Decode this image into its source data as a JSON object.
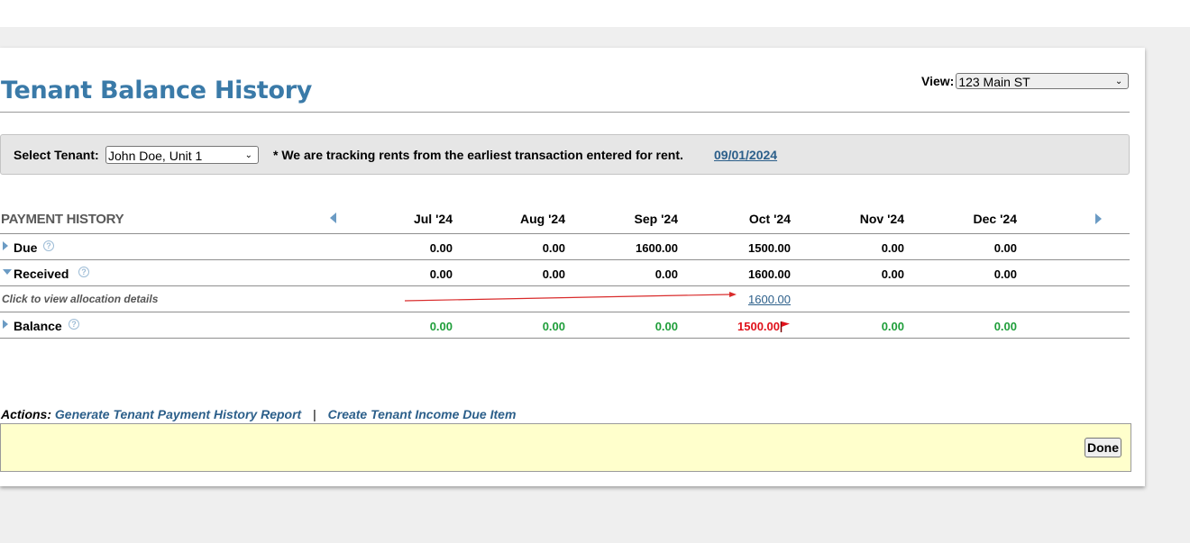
{
  "page": {
    "title": "Tenant Balance History",
    "view_label": "View:",
    "view_value": "123 Main ST"
  },
  "tenant": {
    "label": "Select Tenant:",
    "value": "John Doe, Unit 1",
    "note": "* We are tracking rents from the earliest transaction entered for rent.",
    "tracking_date": "09/01/2024"
  },
  "history": {
    "heading": "PAYMENT HISTORY",
    "months": [
      "Jul '24",
      "Aug '24",
      "Sep '24",
      "Oct '24",
      "Nov '24",
      "Dec '24"
    ],
    "due": {
      "label": "Due",
      "values": [
        "0.00",
        "0.00",
        "1600.00",
        "1500.00",
        "0.00",
        "0.00"
      ]
    },
    "received": {
      "label": "Received",
      "values": [
        "0.00",
        "0.00",
        "0.00",
        "1600.00",
        "0.00",
        "0.00"
      ]
    },
    "allocation": {
      "note": "Click to view allocation details",
      "link": "1600.00"
    },
    "balance": {
      "label": "Balance",
      "values": [
        "0.00",
        "0.00",
        "0.00",
        "1500.00",
        "0.00",
        "0.00"
      ]
    }
  },
  "actions": {
    "label": "Actions:",
    "generate_report": "Generate Tenant Payment History Report",
    "separator": "|",
    "create_due_item": "Create Tenant Income Due Item"
  },
  "footer": {
    "done_label": "Done"
  },
  "colors": {
    "title": "#3a7aa8",
    "link": "#2c5f8a",
    "positive": "#1f9e3a",
    "negative": "#e0121b",
    "footer_bg": "#ffffcc"
  },
  "icons": {
    "help": "question-circle-icon",
    "flag": "red-flag-icon",
    "nav_prev": "triangle-left-icon",
    "nav_next": "triangle-right-icon"
  }
}
